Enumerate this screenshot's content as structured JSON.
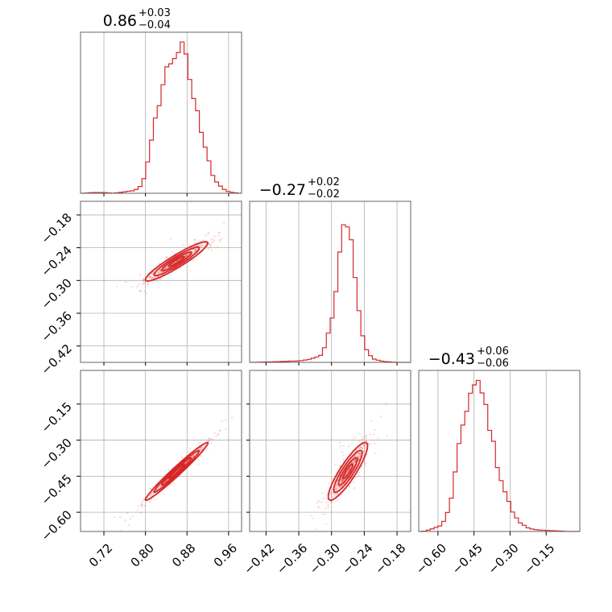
{
  "chart_data": {
    "type": "corner",
    "color": "#d62728",
    "grid": true,
    "titles": [
      {
        "value": "0.86",
        "plus": "+0.03",
        "minus": "−0.04"
      },
      {
        "value": "−0.27",
        "plus": "+0.02",
        "minus": "−0.02"
      },
      {
        "value": "−0.43",
        "plus": "+0.06",
        "minus": "−0.06"
      }
    ],
    "params": [
      {
        "range": [
          0.675,
          0.985
        ],
        "ticks": [
          0.72,
          0.8,
          0.88,
          0.96
        ],
        "tick_labels": [
          "0.72",
          "0.80",
          "0.88",
          "0.96"
        ]
      },
      {
        "range": [
          -0.45,
          -0.155
        ],
        "ticks": [
          -0.42,
          -0.36,
          -0.3,
          -0.24,
          -0.18
        ],
        "tick_labels": [
          "−0.42",
          "−0.36",
          "−0.30",
          "−0.24",
          "−0.18"
        ]
      },
      {
        "range": [
          -0.68,
          -0.01
        ],
        "ticks": [
          -0.6,
          -0.45,
          -0.3,
          -0.15
        ],
        "tick_labels": [
          "−0.60",
          "−0.45",
          "−0.30",
          "−0.15"
        ]
      }
    ],
    "marginals": [
      {
        "x": [
          0.68,
          0.7,
          0.72,
          0.74,
          0.76,
          0.78,
          0.79,
          0.8,
          0.81,
          0.82,
          0.83,
          0.84,
          0.85,
          0.86,
          0.87,
          0.88,
          0.89,
          0.9,
          0.91,
          0.92,
          0.93,
          0.94,
          0.95,
          0.96,
          0.97,
          0.98
        ],
        "density": [
          0.0,
          0.005,
          0.005,
          0.0,
          0.01,
          0.02,
          0.05,
          0.13,
          0.32,
          0.52,
          0.7,
          0.84,
          0.92,
          0.98,
          1.0,
          0.9,
          0.7,
          0.55,
          0.4,
          0.26,
          0.12,
          0.06,
          0.03,
          0.01,
          0.005,
          0.0
        ]
      },
      {
        "x": [
          -0.45,
          -0.4,
          -0.36,
          -0.34,
          -0.32,
          -0.31,
          -0.3,
          -0.29,
          -0.285,
          -0.28,
          -0.275,
          -0.27,
          -0.265,
          -0.26,
          -0.255,
          -0.25,
          -0.245,
          -0.24,
          -0.235,
          -0.23,
          -0.225,
          -0.22,
          -0.21,
          -0.2,
          -0.18
        ],
        "density": [
          0.0,
          0.005,
          0.01,
          0.02,
          0.05,
          0.13,
          0.3,
          0.55,
          0.78,
          0.93,
          1.0,
          0.96,
          0.85,
          0.7,
          0.52,
          0.36,
          0.22,
          0.12,
          0.08,
          0.05,
          0.03,
          0.02,
          0.01,
          0.005,
          0.0
        ]
      },
      {
        "x": [
          -0.66,
          -0.62,
          -0.59,
          -0.57,
          -0.55,
          -0.53,
          -0.51,
          -0.49,
          -0.47,
          -0.45,
          -0.43,
          -0.41,
          -0.39,
          -0.37,
          -0.35,
          -0.33,
          -0.31,
          -0.29,
          -0.27,
          -0.25,
          -0.22,
          -0.18,
          -0.12,
          -0.05
        ],
        "density": [
          0.0,
          0.02,
          0.04,
          0.08,
          0.18,
          0.38,
          0.6,
          0.8,
          0.93,
          0.99,
          1.0,
          0.92,
          0.78,
          0.6,
          0.44,
          0.32,
          0.22,
          0.14,
          0.08,
          0.05,
          0.02,
          0.01,
          0.005,
          0.0
        ]
      }
    ],
    "joint": [
      {
        "x": 0,
        "y": 1,
        "mean": [
          0.86,
          -0.265
        ],
        "sd": [
          0.03,
          0.018
        ],
        "rho": 0.93
      },
      {
        "x": 0,
        "y": 2,
        "mean": [
          0.86,
          -0.43
        ],
        "sd": [
          0.03,
          0.06
        ],
        "rho": 0.98
      },
      {
        "x": 1,
        "y": 2,
        "mean": [
          -0.27,
          -0.43
        ],
        "sd": [
          0.018,
          0.06
        ],
        "rho": 0.88
      }
    ]
  }
}
